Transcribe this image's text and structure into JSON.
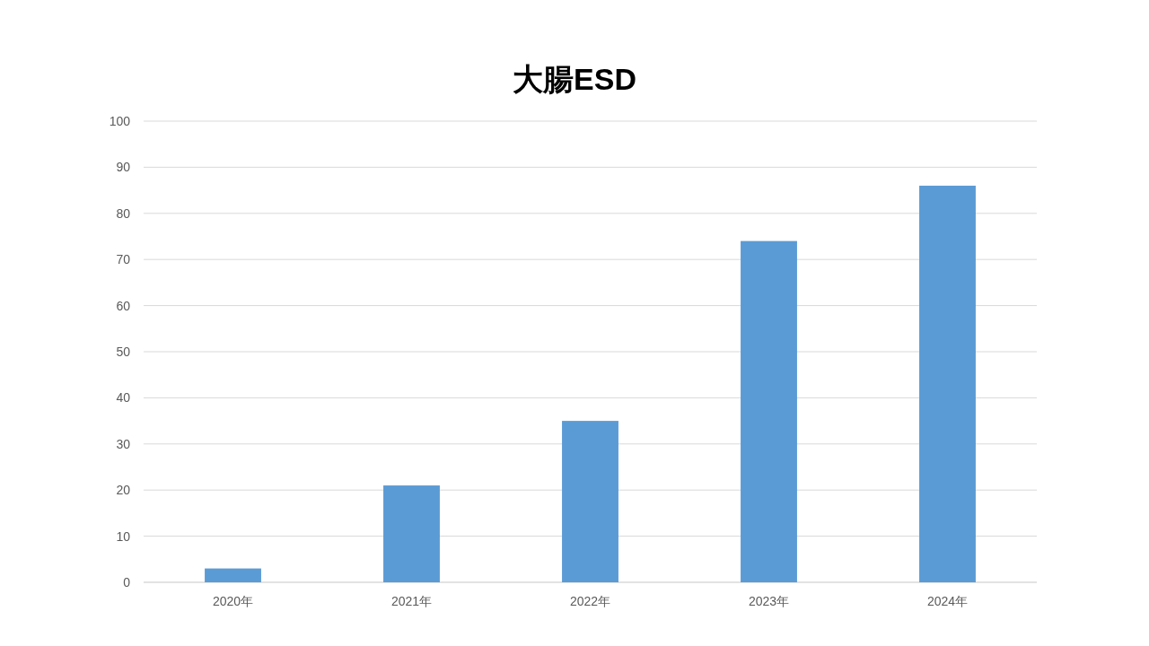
{
  "chart_data": {
    "type": "bar",
    "title": "大腸ESD",
    "categories": [
      "2020年",
      "2021年",
      "2022年",
      "2023年",
      "2024年"
    ],
    "values": [
      3,
      21,
      35,
      74,
      86
    ],
    "color": "#5b9bd5",
    "ylim": [
      0,
      100
    ],
    "yticks": [
      0,
      10,
      20,
      30,
      40,
      50,
      60,
      70,
      80,
      90,
      100
    ],
    "grid": "y"
  }
}
